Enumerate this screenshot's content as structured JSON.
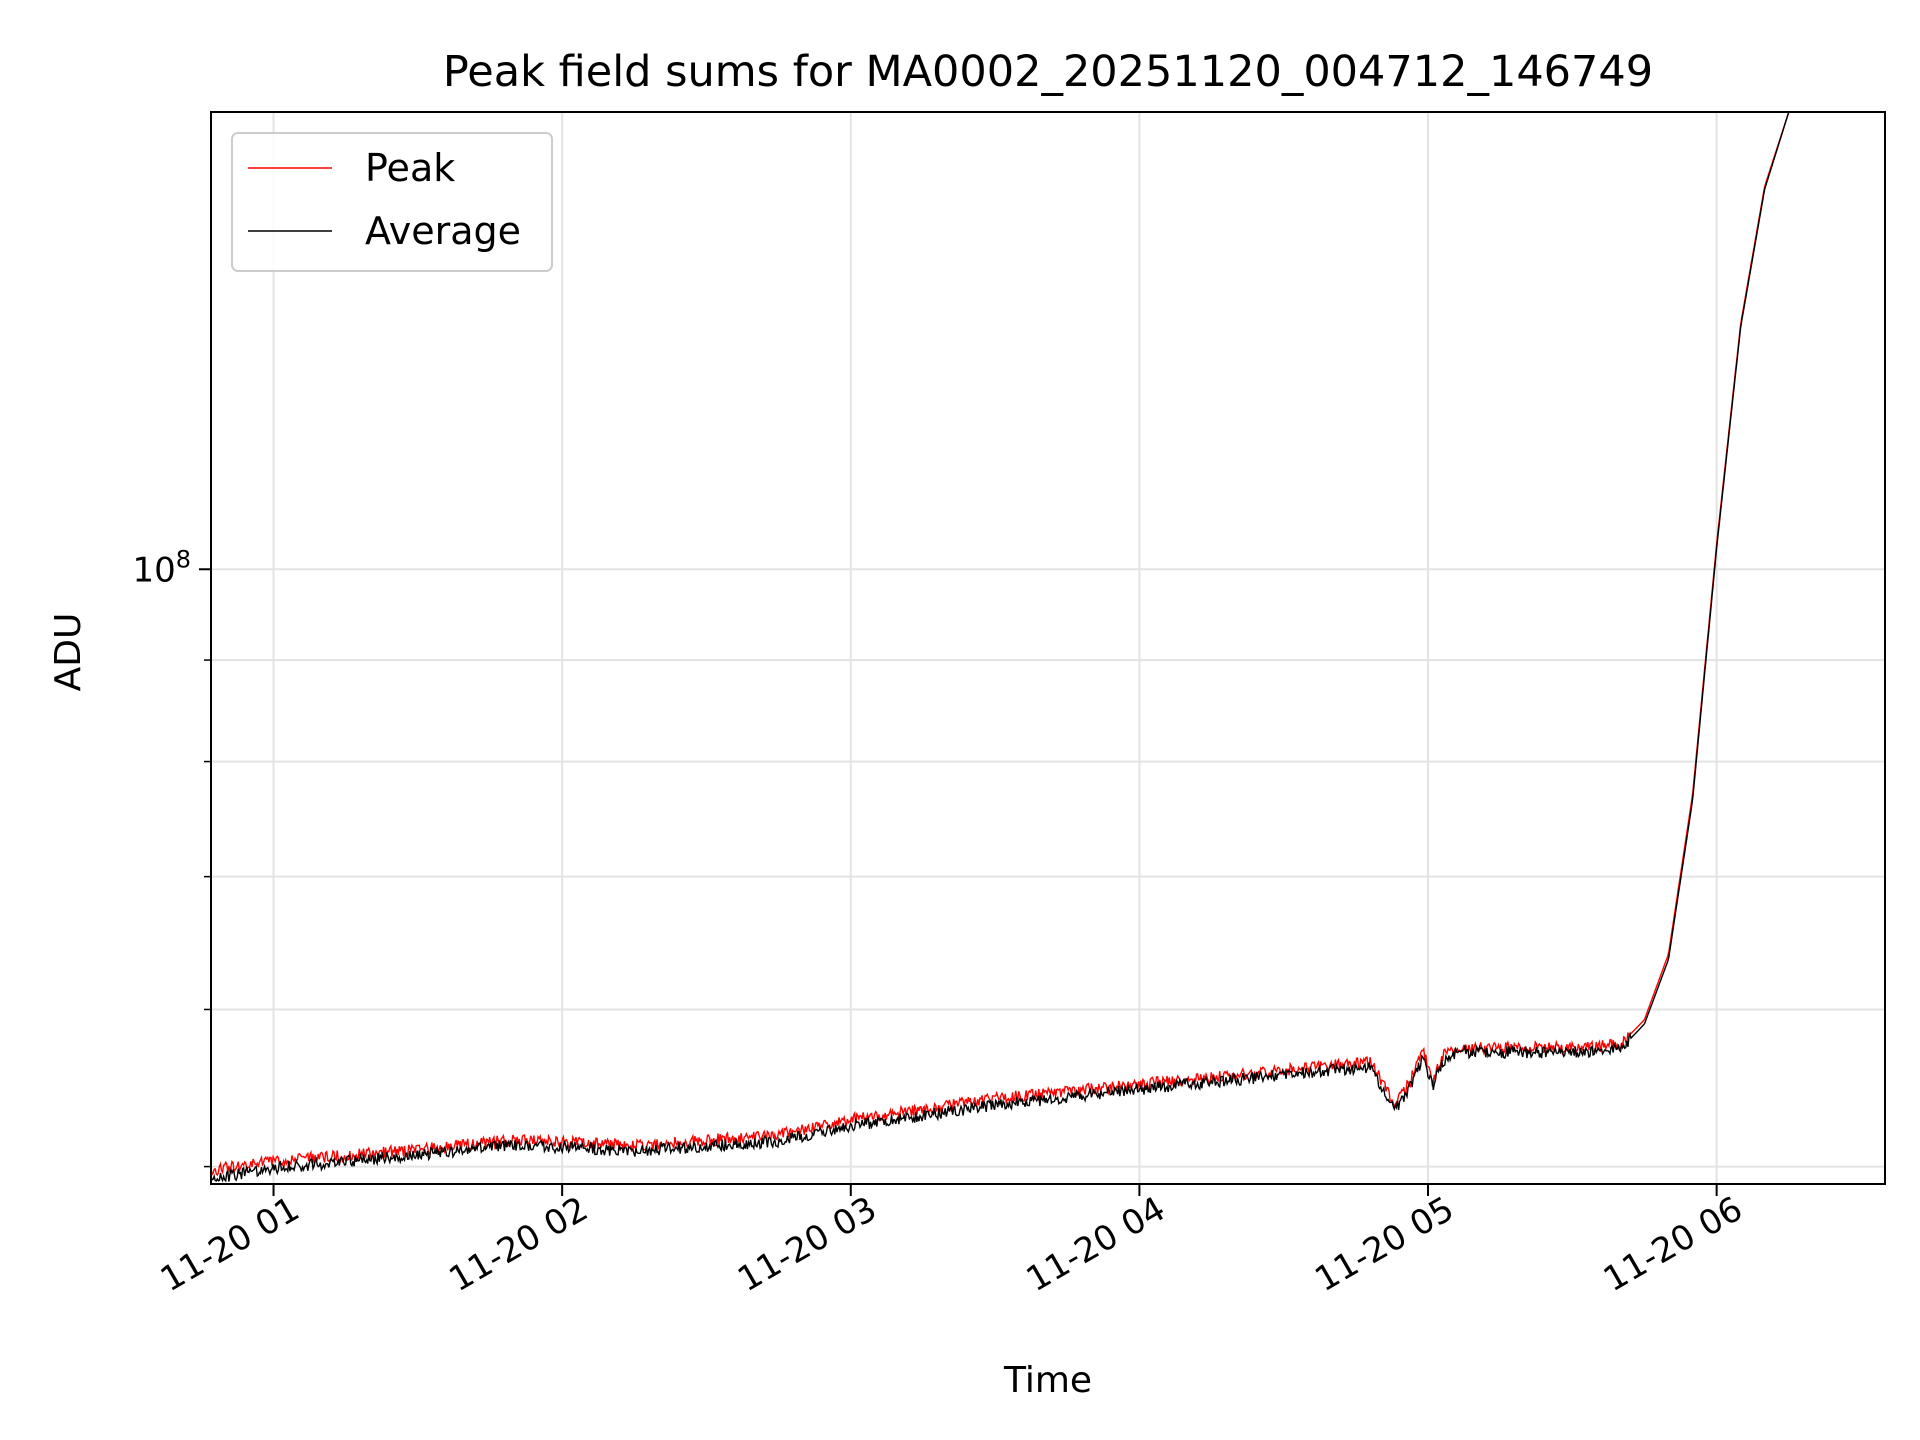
{
  "chart_data": {
    "type": "line",
    "title": "Peak field sums for MA0002_20251120_004712_146749",
    "xlabel": "Time",
    "ylabel": "ADU",
    "x_scale": "time",
    "y_scale": "log",
    "xlim": [
      "2025-11-20T00:47:00",
      "2025-11-20T06:35:00"
    ],
    "ylim": [
      49000000,
      170000000
    ],
    "x_ticks": [
      {
        "t": "2025-11-20T01:00:00",
        "label": "11-20 01"
      },
      {
        "t": "2025-11-20T02:00:00",
        "label": "11-20 02"
      },
      {
        "t": "2025-11-20T03:00:00",
        "label": "11-20 03"
      },
      {
        "t": "2025-11-20T04:00:00",
        "label": "11-20 04"
      },
      {
        "t": "2025-11-20T05:00:00",
        "label": "11-20 05"
      },
      {
        "t": "2025-11-20T06:00:00",
        "label": "11-20 06"
      }
    ],
    "y_major_ticks": [
      {
        "v": 100000000,
        "base": "10",
        "exp": "8"
      }
    ],
    "y_minor_ticks": [
      50000000,
      60000000,
      70000000,
      80000000,
      90000000,
      200000000
    ],
    "grid": true,
    "legend": "upper-left",
    "series": [
      {
        "name": "Peak",
        "color": "#ff0000",
        "x": [
          "2025-11-20T00:47:00",
          "2025-11-20T01:00:00",
          "2025-11-20T01:30:00",
          "2025-11-20T01:50:00",
          "2025-11-20T02:15:00",
          "2025-11-20T02:45:00",
          "2025-11-20T03:00:00",
          "2025-11-20T03:30:00",
          "2025-11-20T04:00:00",
          "2025-11-20T04:20:00",
          "2025-11-20T04:40:00",
          "2025-11-20T04:48:00",
          "2025-11-20T04:53:00",
          "2025-11-20T04:56:00",
          "2025-11-20T04:59:00",
          "2025-11-20T05:01:00",
          "2025-11-20T05:03:00",
          "2025-11-20T05:06:00",
          "2025-11-20T05:30:00",
          "2025-11-20T05:40:00",
          "2025-11-20T05:45:00",
          "2025-11-20T05:50:00",
          "2025-11-20T05:55:00",
          "2025-11-20T06:00:00",
          "2025-11-20T06:05:00",
          "2025-11-20T06:10:00",
          "2025-11-20T06:15:00"
        ],
        "y": [
          49800000,
          50300000,
          51000000,
          51600000,
          51200000,
          51900000,
          52800000,
          54100000,
          55000000,
          55600000,
          56200000,
          56500000,
          53800000,
          55000000,
          57200000,
          55200000,
          56900000,
          57400000,
          57400000,
          57600000,
          59300000,
          64000000,
          77000000,
          103000000,
          133000000,
          156000000,
          170000000
        ]
      },
      {
        "name": "Average",
        "color": "#000000",
        "x": [
          "2025-11-20T00:47:00",
          "2025-11-20T01:00:00",
          "2025-11-20T01:30:00",
          "2025-11-20T01:50:00",
          "2025-11-20T02:15:00",
          "2025-11-20T02:45:00",
          "2025-11-20T03:00:00",
          "2025-11-20T03:30:00",
          "2025-11-20T04:00:00",
          "2025-11-20T04:20:00",
          "2025-11-20T04:40:00",
          "2025-11-20T04:48:00",
          "2025-11-20T04:53:00",
          "2025-11-20T04:56:00",
          "2025-11-20T04:59:00",
          "2025-11-20T05:01:00",
          "2025-11-20T05:03:00",
          "2025-11-20T05:06:00",
          "2025-11-20T05:30:00",
          "2025-11-20T05:40:00",
          "2025-11-20T05:45:00",
          "2025-11-20T05:50:00",
          "2025-11-20T05:55:00",
          "2025-11-20T06:00:00",
          "2025-11-20T06:05:00",
          "2025-11-20T06:10:00",
          "2025-11-20T06:15:00"
        ],
        "y": [
          49300000,
          49900000,
          50700000,
          51300000,
          50900000,
          51500000,
          52400000,
          53700000,
          54700000,
          55300000,
          55900000,
          56100000,
          53300000,
          54700000,
          56800000,
          54800000,
          56500000,
          57100000,
          57100000,
          57300000,
          59000000,
          63600000,
          76500000,
          102500000,
          132500000,
          155500000,
          170000000
        ]
      }
    ]
  }
}
